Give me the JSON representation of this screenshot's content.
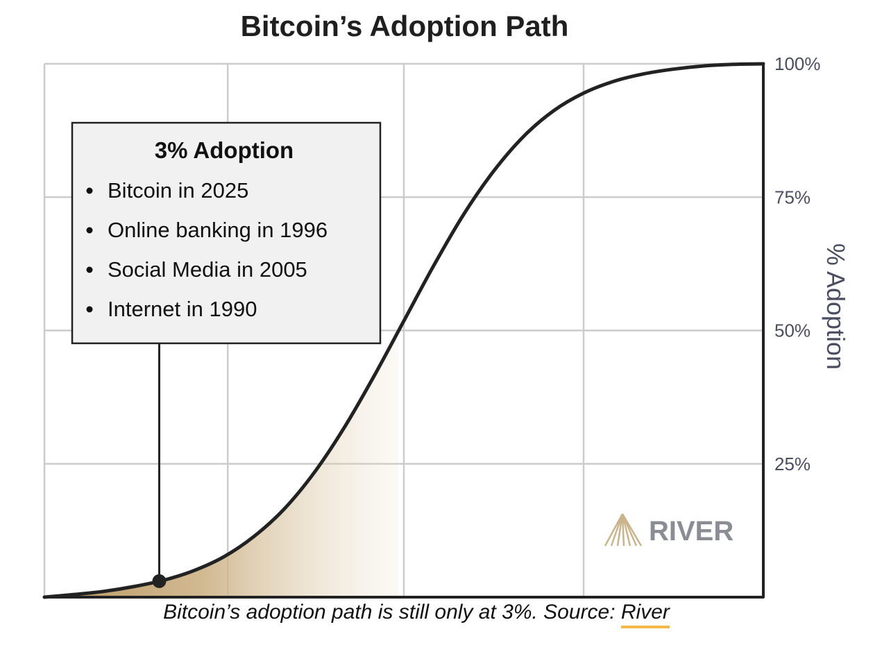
{
  "chart_data": {
    "type": "line",
    "title": "Bitcoin’s Adoption Path",
    "ylabel": "% Adoption",
    "ylim": [
      0,
      100
    ],
    "yticks": [
      {
        "value": 25,
        "label": "25%"
      },
      {
        "value": 50,
        "label": "50%"
      },
      {
        "value": 75,
        "label": "75%"
      },
      {
        "value": 100,
        "label": "100%"
      }
    ],
    "grid": true,
    "axis_position": "right",
    "series": [
      {
        "values": [
          0,
          0.5,
          1.1,
          2.0,
          3.2,
          5.0,
          7.6,
          11.4,
          16.5,
          23.3,
          31.7,
          41.4,
          51.8,
          62.2,
          71.8,
          79.9,
          86.4,
          91.2,
          94.5,
          96.7,
          98.1,
          99.0,
          99.6,
          99.9,
          100
        ]
      }
    ],
    "highlight": {
      "value": 3,
      "shaded_region": "start of curve to the 50% crossing"
    },
    "annotation": {
      "heading": "3% Adoption",
      "items": [
        "Bitcoin in 2025",
        "Online banking in 1996",
        "Social Media in 2005",
        "Internet in 1990"
      ]
    },
    "colors": {
      "curve": "#222222",
      "shade": "#b8965e",
      "grid": "#cccccc",
      "axis_text": "#4a4e60",
      "box_fill": "#f1f1f1",
      "logo": "#c9b48c",
      "link_underline": "#f2b84a"
    }
  },
  "logo": {
    "text": "RIVER",
    "icon": "river-mountain-logo-icon"
  },
  "caption": {
    "text": "Bitcoin’s adoption path is still only at 3%. Source: ",
    "source": "River"
  }
}
